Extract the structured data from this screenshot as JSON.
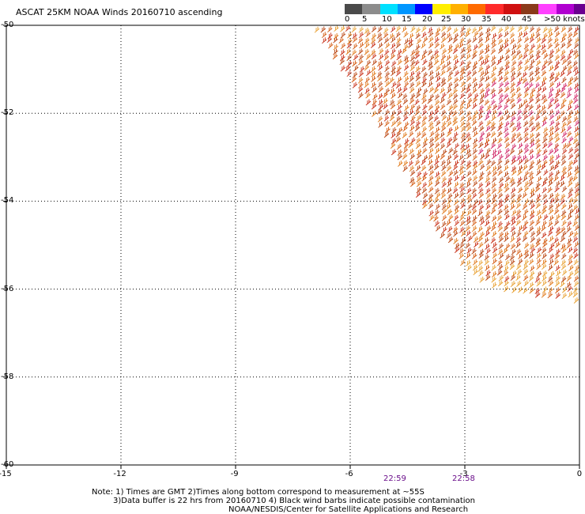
{
  "title": "ASCAT 25KM NOAA Winds 20160710 ascending",
  "legend": {
    "labels": [
      "0",
      "5",
      "10",
      "15",
      "20",
      "25",
      "30",
      "35",
      "40",
      "45",
      ">50 knots"
    ],
    "colors": [
      "#4a4a4a",
      "#8c8c8c",
      "#00e0ff",
      "#0096ff",
      "#0000ff",
      "#ffee00",
      "#ffb000",
      "#ff6a00",
      "#ff2a2a",
      "#d01010",
      "#8a3a1a",
      "#ff40ff",
      "#b000d0",
      "#6a0090"
    ]
  },
  "chart_data": {
    "type": "map",
    "x_ticks": [
      "-15",
      "-12",
      "-9",
      "-6",
      "-3",
      "0"
    ],
    "y_ticks": [
      "-50",
      "-52",
      "-54",
      "-56",
      "-58",
      "-60"
    ],
    "xlim": [
      -15,
      0
    ],
    "ylim": [
      -60,
      -50
    ],
    "grid": true,
    "swath_times": [
      {
        "label": "22:59",
        "lon": -4.8
      },
      {
        "label": "22:58",
        "lon": -3.0
      }
    ],
    "barb_colors": [
      "#b8420e",
      "#d45a10",
      "#e07818",
      "#c83018",
      "#e8a030",
      "#d02868"
    ]
  },
  "notes": {
    "line1": "Note: 1) Times are GMT 2)Times along bottom correspond to measurement at ~55S",
    "line2": "3)Data buffer is 22 hrs from 20160710 4) Black wind barbs indicate possible contamination",
    "line3": "NOAA/NESDIS/Center for Satellite Applications and Research"
  }
}
